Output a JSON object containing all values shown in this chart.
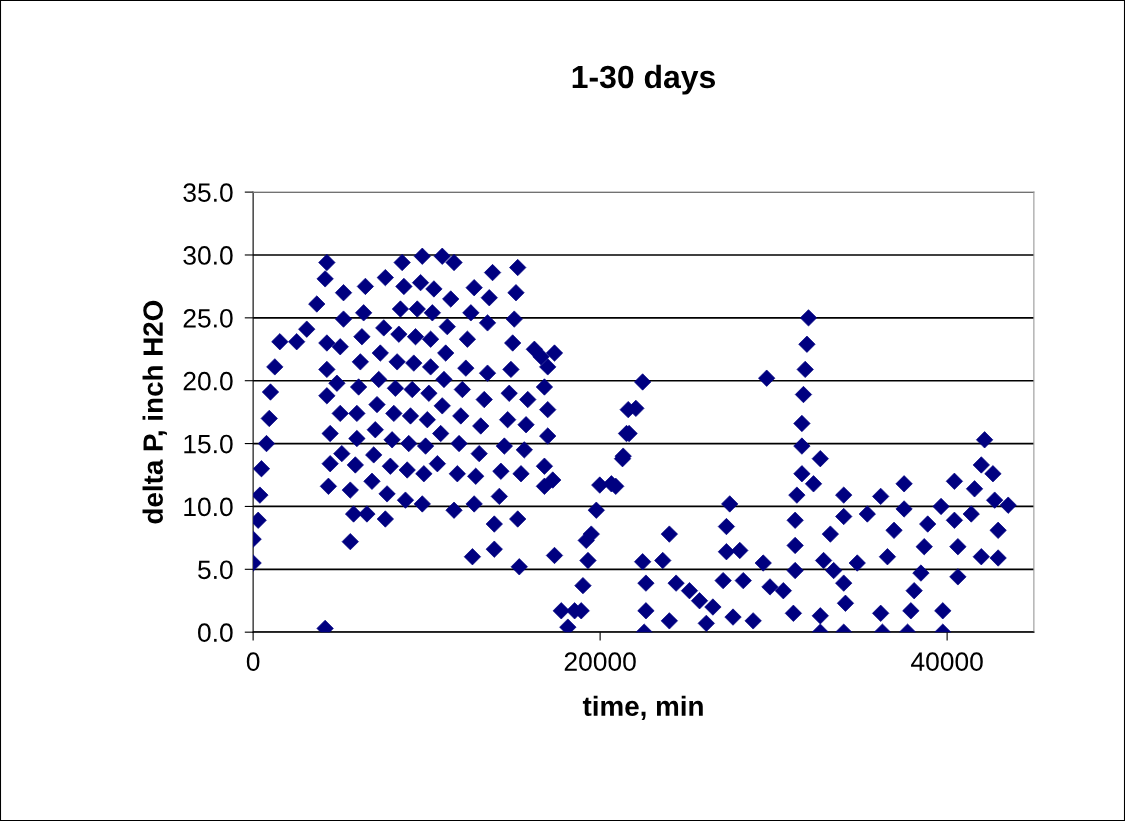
{
  "chart_data": {
    "type": "scatter",
    "title": "1-30 days",
    "xlabel": "time, min",
    "ylabel": "delta P, inch H2O",
    "marker": "diamond",
    "grid": "y",
    "xlim": [
      0,
      45000
    ],
    "xticks": [
      0,
      20000,
      40000
    ],
    "ylim": [
      0,
      35
    ],
    "yticks": [
      {
        "value": 0,
        "label": "0.0"
      },
      {
        "value": 5,
        "label": "5.0"
      },
      {
        "value": 10,
        "label": "10.0"
      },
      {
        "value": 15,
        "label": "15.0"
      },
      {
        "value": 20,
        "label": "20.0"
      },
      {
        "value": 25,
        "label": "25.0"
      },
      {
        "value": 30,
        "label": "30.0"
      },
      {
        "value": 35,
        "label": "35.0"
      }
    ],
    "series": [
      {
        "color": "#000080",
        "x": [
          0,
          0,
          290,
          390,
          480,
          770,
          930,
          1000,
          1250,
          1540,
          2510,
          3090,
          3670,
          4250,
          4150,
          4150,
          4250,
          4250,
          4250,
          4440,
          4440,
          4340,
          5210,
          5210,
          5020,
          4830,
          5020,
          5110,
          5600,
          5600,
          5790,
          6470,
          6370,
          6270,
          6180,
          6080,
          5980,
          5980,
          5890,
          6560,
          6850,
          6950,
          7040,
          7140,
          7240,
          7330,
          7530,
          7620,
          7620,
          7720,
          7910,
          8010,
          8110,
          8200,
          8300,
          8400,
          8490,
          8590,
          8690,
          8780,
          8880,
          8970,
          9070,
          9170,
          9260,
          9360,
          9460,
          9650,
          9750,
          9750,
          9840,
          9940,
          10040,
          10130,
          10230,
          10230,
          10330,
          10420,
          10900,
          10620,
          10810,
          10900,
          11000,
          11100,
          11190,
          11390,
          11580,
          11580,
          11770,
          11870,
          11970,
          12060,
          12260,
          12350,
          12550,
          12740,
          12640,
          12740,
          12830,
          13030,
          13120,
          13320,
          13510,
          13510,
          13610,
          13800,
          13900,
          13900,
          14190,
          14280,
          14480,
          14670,
          14760,
          14860,
          14960,
          15050,
          15150,
          15250,
          15250,
          15340,
          15440,
          15630,
          15730,
          15830,
          16210,
          16600,
          16980,
          17370,
          16790,
          16980,
          16980,
          16790,
          16790,
          17270,
          17370,
          17760,
          18140,
          18530,
          18910,
          19010,
          19300,
          19490,
          19200,
          19780,
          19980,
          20650,
          21330,
          21520,
          21620,
          22450,
          22060,
          21670,
          21290,
          20900,
          22450,
          23610,
          23990,
          22540,
          22640,
          22640,
          23990,
          24380,
          25150,
          25730,
          26120,
          26500,
          27090,
          27470,
          27280,
          27280,
          28050,
          27660,
          28250,
          28820,
          29400,
          29790,
          30560,
          31140,
          29600,
          32010,
          31920,
          31820,
          31720,
          31630,
          31630,
          31630,
          31340,
          32300,
          32690,
          31240,
          31240,
          31240,
          32690,
          32690,
          33270,
          32880,
          33460,
          34040,
          34040,
          34040,
          34140,
          34040,
          34820,
          35400,
          36170,
          36170,
          36270,
          36560,
          36940,
          37520,
          37520,
          37720,
          37910,
          38100,
          38490,
          38680,
          38880,
          39650,
          39750,
          39750,
          40420,
          40420,
          40620,
          40620,
          41390,
          41580,
          41970,
          42160,
          42640,
          42740,
          42940,
          41970,
          43520,
          42940
        ],
        "values": [
          5.5,
          7.4,
          8.9,
          10.9,
          13.0,
          15.0,
          17.0,
          19.1,
          21.1,
          23.1,
          23.1,
          24.1,
          26.1,
          29.4,
          0.3,
          28.1,
          23.0,
          20.9,
          18.8,
          15.8,
          13.4,
          11.6,
          27.0,
          24.9,
          22.7,
          19.8,
          17.4,
          14.2,
          11.3,
          7.2,
          9.4,
          27.5,
          25.4,
          23.5,
          21.5,
          19.5,
          17.4,
          15.4,
          13.3,
          9.4,
          12.0,
          14.1,
          16.1,
          18.1,
          20.1,
          22.2,
          24.2,
          28.2,
          9.0,
          11.0,
          13.2,
          15.3,
          17.4,
          19.4,
          21.5,
          23.7,
          25.7,
          29.4,
          27.5,
          10.5,
          12.9,
          15.0,
          17.2,
          19.3,
          21.4,
          23.5,
          25.7,
          27.8,
          29.9,
          10.2,
          12.6,
          14.8,
          16.9,
          19.0,
          21.1,
          23.3,
          25.4,
          27.3,
          29.9,
          13.4,
          15.8,
          18.0,
          20.1,
          22.2,
          24.3,
          26.5,
          29.4,
          9.7,
          12.6,
          15.0,
          17.2,
          19.3,
          21.0,
          23.3,
          25.4,
          27.4,
          6.0,
          10.2,
          12.4,
          14.2,
          16.4,
          18.5,
          20.6,
          24.6,
          26.6,
          28.6,
          8.6,
          6.6,
          10.8,
          12.8,
          14.8,
          16.9,
          19.0,
          20.9,
          23.0,
          24.9,
          27.0,
          29.0,
          9.0,
          5.2,
          12.6,
          14.5,
          16.5,
          18.5,
          22.5,
          21.9,
          21.1,
          22.2,
          19.5,
          17.7,
          15.6,
          13.2,
          11.6,
          12.1,
          6.1,
          1.7,
          0.4,
          1.7,
          1.7,
          3.7,
          5.7,
          7.8,
          7.3,
          9.7,
          11.7,
          11.8,
          14.0,
          15.8,
          17.7,
          19.9,
          17.8,
          15.8,
          13.8,
          11.6,
          5.6,
          5.7,
          7.8,
          0,
          3.9,
          1.7,
          0.9,
          3.9,
          3.3,
          2.5,
          0.7,
          2.0,
          4.1,
          10.2,
          8.4,
          6.4,
          6.5,
          1.2,
          4.1,
          0.9,
          5.5,
          3.6,
          3.3,
          1.5,
          20.2,
          25.0,
          22.9,
          20.9,
          18.9,
          16.6,
          14.8,
          12.6,
          10.9,
          11.8,
          13.8,
          8.9,
          6.9,
          4.9,
          1.3,
          0,
          7.8,
          5.7,
          4.9,
          10.9,
          9.2,
          3.9,
          2.3,
          0,
          5.5,
          9.4,
          10.8,
          1.5,
          0,
          6.0,
          8.1,
          11.8,
          9.8,
          0,
          1.7,
          3.3,
          4.7,
          6.8,
          8.6,
          10.0,
          1.7,
          0,
          12.0,
          8.9,
          6.8,
          4.4,
          9.4,
          11.4,
          13.3,
          15.3,
          12.6,
          10.5,
          8.1,
          6.0,
          10.1,
          5.9
        ]
      }
    ]
  }
}
